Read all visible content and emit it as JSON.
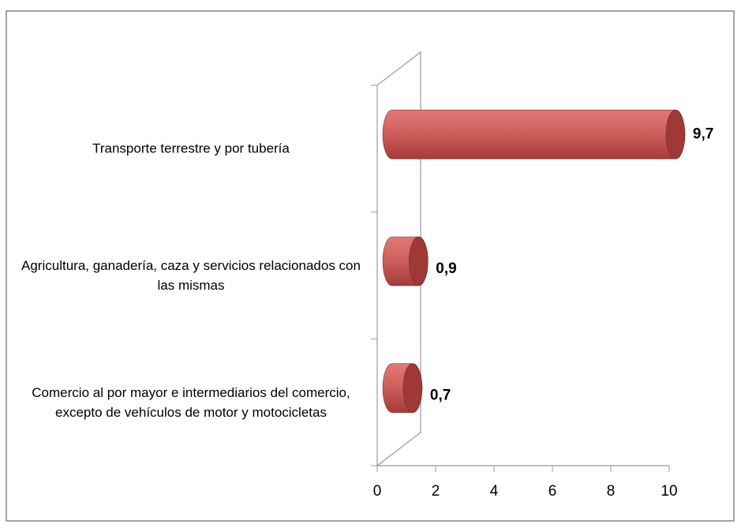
{
  "chart_data": {
    "type": "bar3d-horizontal",
    "categories": [
      "Transporte terrestre y por tubería",
      "Agricultura, ganadería, caza y servicios relacionados con las mismas",
      "Comercio al por mayor e intermediarios del comercio, excepto de vehículos de motor y motocicletas"
    ],
    "values": [
      9.7,
      0.9,
      0.7
    ],
    "value_labels": [
      "9,7",
      "0,9",
      "0,7"
    ],
    "color": "#c0504d",
    "xlim": [
      0,
      10
    ],
    "xticks": [
      0,
      2,
      4,
      6,
      8,
      10
    ]
  }
}
